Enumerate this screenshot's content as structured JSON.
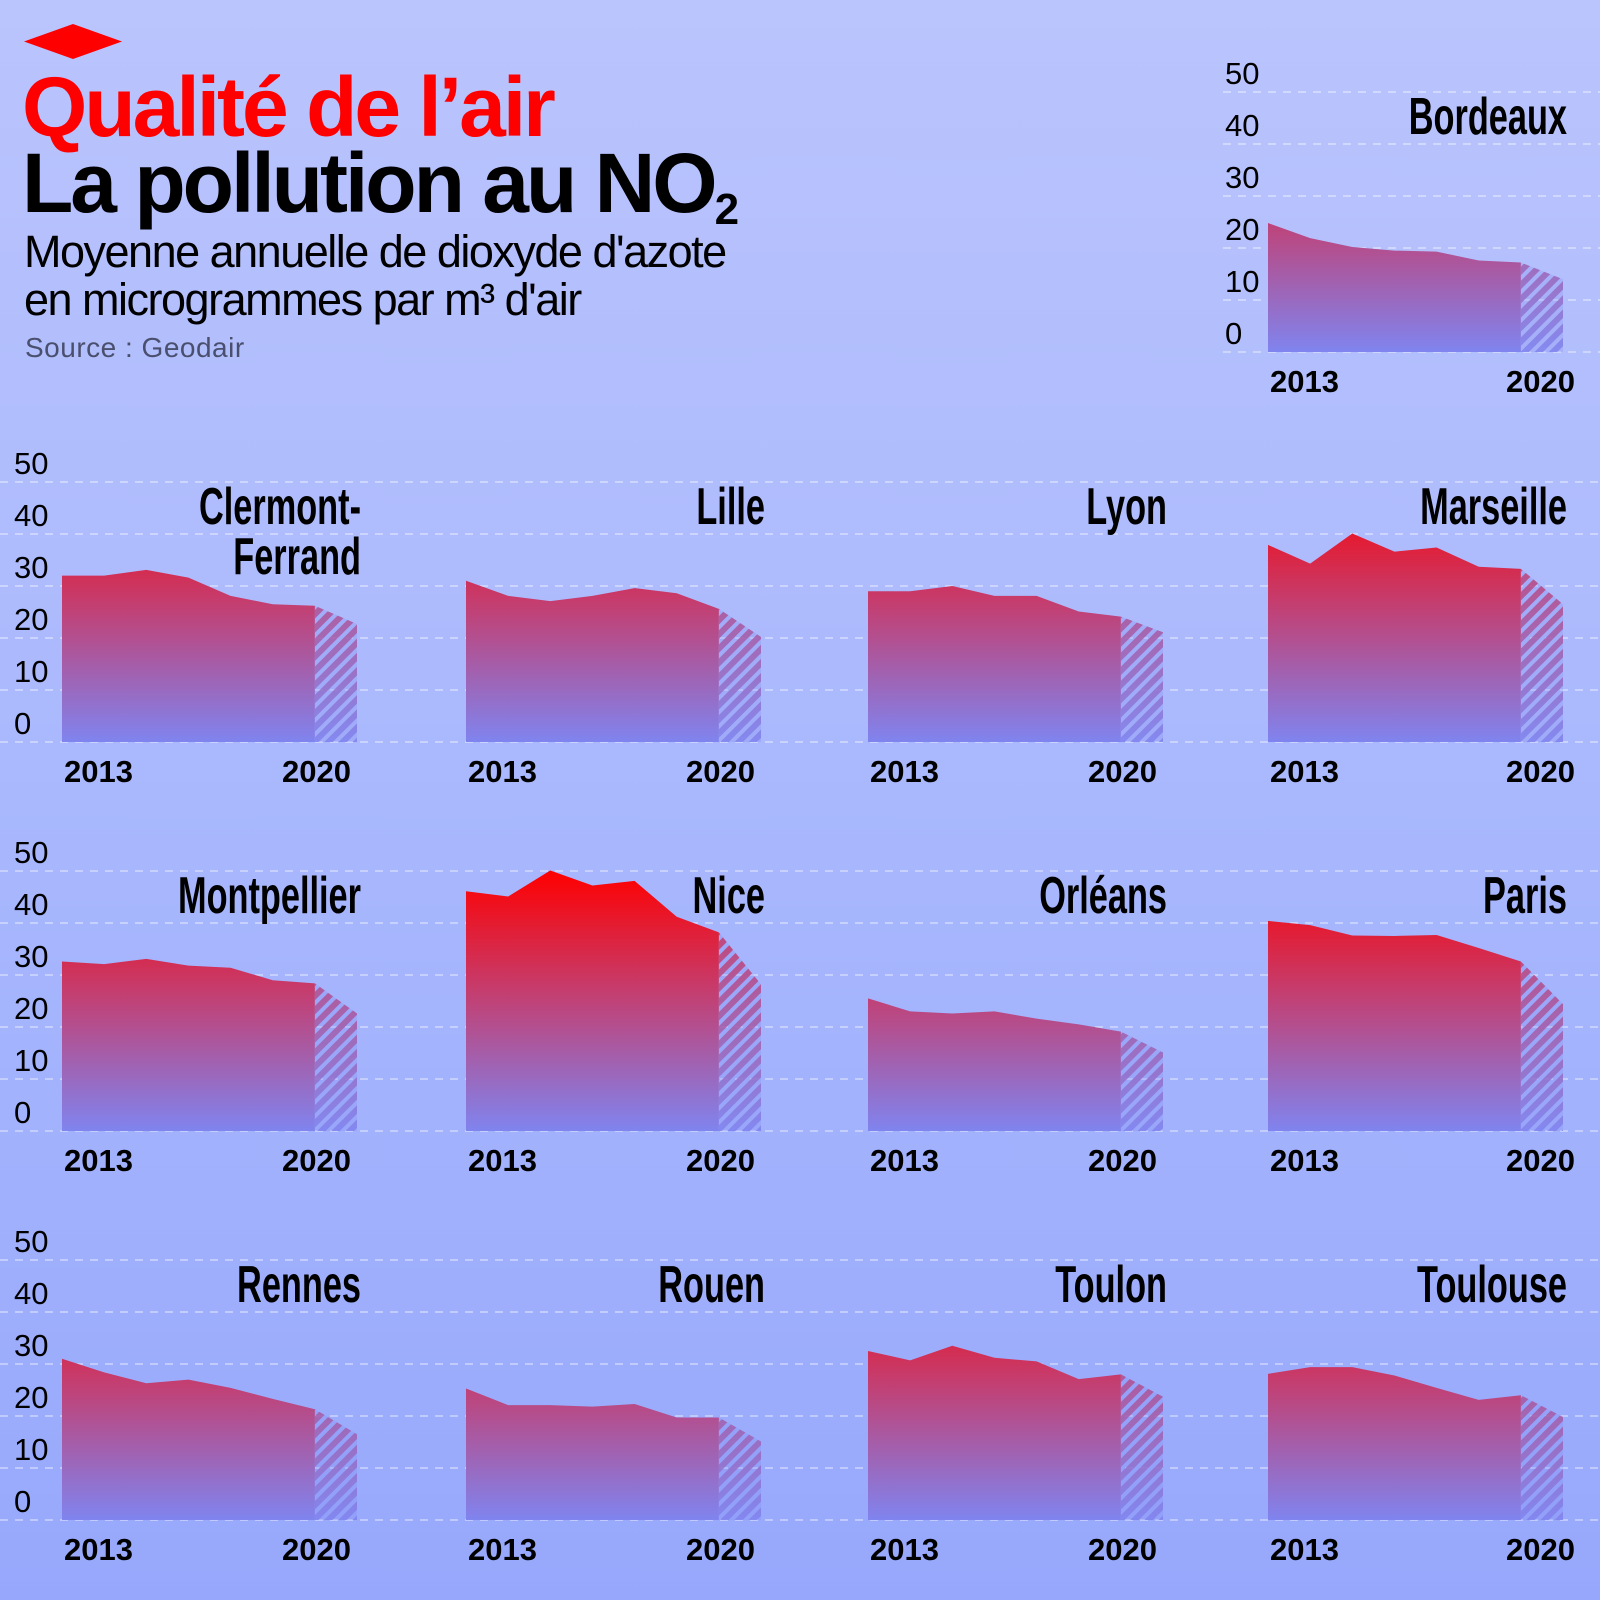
{
  "header": {
    "kicker": "Qualité de l’air",
    "title": "La pollution au NO",
    "title_subscript": "2",
    "subtitle_line1": "Moyenne annuelle de dioxyde d'azote",
    "subtitle_line2": "en microgrammes par m³ d'air",
    "source": "Source : Geodair",
    "accent_color": "#ff0000"
  },
  "style": {
    "gradient_top_color": "#ff0000",
    "gradient_bottom_color": "#8084ef",
    "grid": "dashed"
  },
  "chart_data": [
    {
      "type": "area",
      "title": "Bordeaux",
      "x": [
        2013,
        2014,
        2015,
        2016,
        2017,
        2018,
        2019,
        2020
      ],
      "values": [
        24.8,
        21.9,
        20.2,
        19.5,
        19.3,
        17.6,
        17.2,
        14.0
      ],
      "ylim": [
        0,
        50
      ],
      "yticks": [
        "0",
        "10",
        "20",
        "30",
        "40",
        "50"
      ],
      "xtick_labels": [
        "2013",
        "2020"
      ],
      "hatched_segment": [
        2019,
        2020
      ]
    },
    {
      "type": "area",
      "title": "Clermont-Ferrand",
      "x": [
        2013,
        2014,
        2015,
        2016,
        2017,
        2018,
        2019,
        2020
      ],
      "values": [
        32.0,
        32.0,
        33.1,
        31.6,
        28.1,
        26.5,
        26.2,
        22.7
      ],
      "ylim": [
        0,
        50
      ],
      "yticks": [
        "0",
        "10",
        "20",
        "30",
        "40",
        "50"
      ],
      "xtick_labels": [
        "2013",
        "2020"
      ],
      "hatched_segment": [
        2019,
        2020
      ]
    },
    {
      "type": "area",
      "title": "Lille",
      "x": [
        2013,
        2014,
        2015,
        2016,
        2017,
        2018,
        2019,
        2020
      ],
      "values": [
        31.0,
        28.1,
        27.1,
        28.1,
        29.6,
        28.6,
        25.6,
        20.2
      ],
      "ylim": [
        0,
        50
      ],
      "xtick_labels": [
        "2013",
        "2020"
      ],
      "hatched_segment": [
        2019,
        2020
      ]
    },
    {
      "type": "area",
      "title": "Lyon",
      "x": [
        2013,
        2014,
        2015,
        2016,
        2017,
        2018,
        2019,
        2020
      ],
      "values": [
        29.0,
        29.0,
        30.0,
        28.1,
        28.1,
        25.1,
        24.1,
        21.1
      ],
      "ylim": [
        0,
        50
      ],
      "xtick_labels": [
        "2013",
        "2020"
      ],
      "hatched_segment": [
        2019,
        2020
      ]
    },
    {
      "type": "area",
      "title": "Marseille",
      "x": [
        2013,
        2014,
        2015,
        2016,
        2017,
        2018,
        2019,
        2020
      ],
      "values": [
        37.9,
        34.3,
        40.1,
        36.6,
        37.4,
        33.7,
        33.3,
        26.5
      ],
      "ylim": [
        0,
        50
      ],
      "xtick_labels": [
        "2013",
        "2020"
      ],
      "hatched_segment": [
        2019,
        2020
      ]
    },
    {
      "type": "area",
      "title": "Montpellier",
      "x": [
        2013,
        2014,
        2015,
        2016,
        2017,
        2018,
        2019,
        2020
      ],
      "values": [
        32.6,
        32.1,
        33.1,
        31.8,
        31.4,
        29.0,
        28.4,
        22.6
      ],
      "ylim": [
        0,
        50
      ],
      "yticks": [
        "0",
        "10",
        "20",
        "30",
        "40",
        "50"
      ],
      "xtick_labels": [
        "2013",
        "2020"
      ],
      "hatched_segment": [
        2019,
        2020
      ]
    },
    {
      "type": "area",
      "title": "Nice",
      "x": [
        2013,
        2014,
        2015,
        2016,
        2017,
        2018,
        2019,
        2020
      ],
      "values": [
        46.1,
        45.1,
        50.1,
        47.2,
        48.1,
        41.2,
        38.2,
        28.2
      ],
      "ylim": [
        0,
        50
      ],
      "xtick_labels": [
        "2013",
        "2020"
      ],
      "hatched_segment": [
        2019,
        2020
      ]
    },
    {
      "type": "area",
      "title": "Orléans",
      "x": [
        2013,
        2014,
        2015,
        2016,
        2017,
        2018,
        2019,
        2020
      ],
      "values": [
        25.5,
        23.0,
        22.6,
        23.0,
        21.6,
        20.5,
        19.1,
        15.1
      ],
      "ylim": [
        0,
        50
      ],
      "xtick_labels": [
        "2013",
        "2020"
      ],
      "hatched_segment": [
        2019,
        2020
      ]
    },
    {
      "type": "area",
      "title": "Paris",
      "x": [
        2013,
        2014,
        2015,
        2016,
        2017,
        2018,
        2019,
        2020
      ],
      "values": [
        40.4,
        39.6,
        37.6,
        37.5,
        37.7,
        35.2,
        32.6,
        24.4
      ],
      "ylim": [
        0,
        50
      ],
      "xtick_labels": [
        "2013",
        "2020"
      ],
      "hatched_segment": [
        2019,
        2020
      ]
    },
    {
      "type": "area",
      "title": "Rennes",
      "x": [
        2013,
        2014,
        2015,
        2016,
        2017,
        2018,
        2019,
        2020
      ],
      "values": [
        31.0,
        28.4,
        26.3,
        27.0,
        25.4,
        23.3,
        21.3,
        16.5
      ],
      "ylim": [
        0,
        50
      ],
      "yticks": [
        "0",
        "10",
        "20",
        "30",
        "40",
        "50"
      ],
      "xtick_labels": [
        "2013",
        "2020"
      ],
      "hatched_segment": [
        2019,
        2020
      ]
    },
    {
      "type": "area",
      "title": "Rouen",
      "x": [
        2013,
        2014,
        2015,
        2016,
        2017,
        2018,
        2019,
        2020
      ],
      "values": [
        25.3,
        22.1,
        22.1,
        21.8,
        22.3,
        19.7,
        19.7,
        15.1
      ],
      "ylim": [
        0,
        50
      ],
      "xtick_labels": [
        "2013",
        "2020"
      ],
      "hatched_segment": [
        2019,
        2020
      ]
    },
    {
      "type": "area",
      "title": "Toulon",
      "x": [
        2013,
        2014,
        2015,
        2016,
        2017,
        2018,
        2019,
        2020
      ],
      "values": [
        32.5,
        30.7,
        33.5,
        31.2,
        30.5,
        27.1,
        28.0,
        23.7
      ],
      "ylim": [
        0,
        50
      ],
      "xtick_labels": [
        "2013",
        "2020"
      ],
      "hatched_segment": [
        2019,
        2020
      ]
    },
    {
      "type": "area",
      "title": "Toulouse",
      "x": [
        2013,
        2014,
        2015,
        2016,
        2017,
        2018,
        2019,
        2020
      ],
      "values": [
        28.1,
        29.4,
        29.4,
        27.8,
        25.4,
        23.1,
        24.0,
        19.8
      ],
      "ylim": [
        0,
        50
      ],
      "xtick_labels": [
        "2013",
        "2020"
      ],
      "hatched_segment": [
        2019,
        2020
      ]
    }
  ]
}
